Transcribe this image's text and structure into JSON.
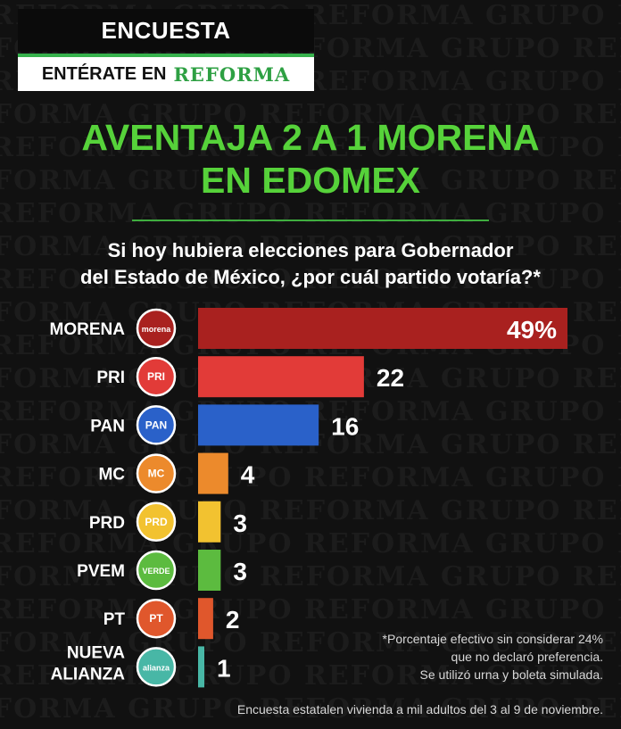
{
  "header": {
    "kicker": "ENCUESTA",
    "tagline_prefix": "ENTÉRATE EN",
    "tagline_brand": "REFORMA"
  },
  "headline": {
    "line1": "AVENTAJA 2 A 1 MORENA",
    "line2": "EN EDOMEX"
  },
  "question": {
    "line1": "Si hoy hubiera elecciones para Gobernador",
    "line2": "del Estado de México, ¿por cuál partido votaría?*"
  },
  "watermark_text": "REFORMA GRUPO",
  "chart_data": {
    "type": "bar",
    "orientation": "horizontal",
    "categories": [
      "MORENA",
      "PRI",
      "PAN",
      "MC",
      "PRD",
      "PVEM",
      "PT",
      "NUEVA ALIANZA"
    ],
    "values": [
      49,
      22,
      16,
      4,
      3,
      3,
      2,
      1
    ],
    "value_labels": [
      "49%",
      "22",
      "16",
      "4",
      "3",
      "3",
      "2",
      "1"
    ],
    "unit": "%",
    "colors": [
      "#a9211f",
      "#e23b38",
      "#2a61c9",
      "#ec8a2c",
      "#f2c230",
      "#5cbb3f",
      "#e0572c",
      "#48b7a6"
    ],
    "logo_labels": [
      "morena",
      "PRI",
      "PAN",
      "MC",
      "PRD",
      "VERDE",
      "PT",
      "alianza"
    ],
    "logo_icons": [
      "morena-logo-icon",
      "pri-logo-icon",
      "pan-logo-icon",
      "mc-logo-icon",
      "prd-logo-icon",
      "pvem-logo-icon",
      "pt-logo-icon",
      "nueva-alianza-logo-icon"
    ],
    "xlim": [
      0,
      49
    ],
    "grid": false,
    "legend": "none"
  },
  "footnote": {
    "line1": "*Porcentaje efectivo sin considerar 24%",
    "line2": "que no declaró preferencia.",
    "line3": "Se utilizó urna y boleta simulada."
  },
  "source": "Encuesta estatalen vivienda a mil adultos del 3 al 9 de noviembre."
}
